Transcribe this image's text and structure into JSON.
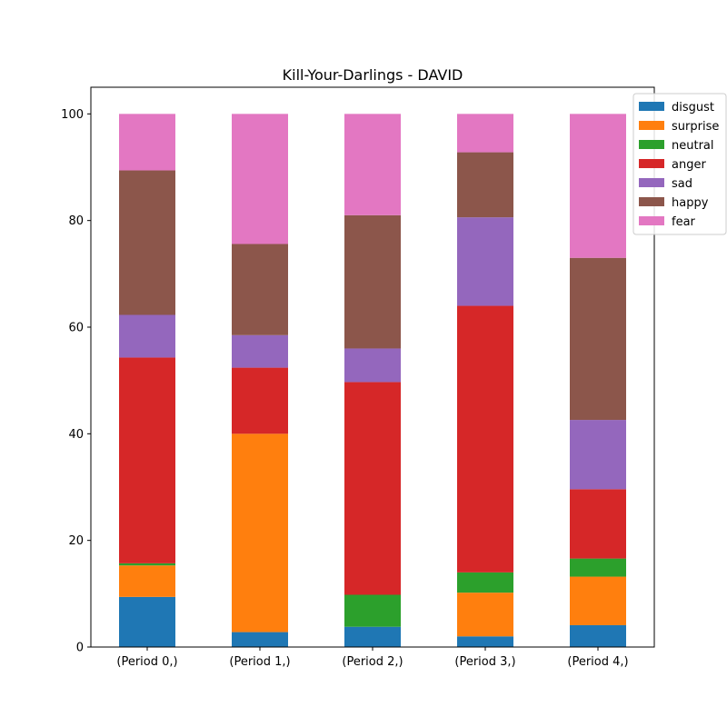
{
  "chart_data": {
    "type": "bar",
    "stacked": true,
    "title": "Kill-Your-Darlings - DAVID",
    "xlabel": "",
    "ylabel": "",
    "categories": [
      "(Period 0,)",
      "(Period 1,)",
      "(Period 2,)",
      "(Period 3,)",
      "(Period 4,)"
    ],
    "ylim": [
      0,
      105
    ],
    "yticks": [
      0,
      20,
      40,
      60,
      80,
      100
    ],
    "grid": false,
    "legend_position": "top-right",
    "series": [
      {
        "name": "disgust",
        "color": "#1f77b4",
        "values": [
          9.4,
          2.8,
          3.8,
          2.0,
          4.1
        ]
      },
      {
        "name": "surprise",
        "color": "#ff7f0e",
        "values": [
          5.9,
          37.2,
          0.0,
          8.2,
          9.1
        ]
      },
      {
        "name": "neutral",
        "color": "#2ca02c",
        "values": [
          0.4,
          0.0,
          6.0,
          3.8,
          3.4
        ]
      },
      {
        "name": "anger",
        "color": "#d62728",
        "values": [
          38.6,
          12.4,
          39.9,
          50.0,
          13.0
        ]
      },
      {
        "name": "sad",
        "color": "#9467bd",
        "values": [
          8.0,
          6.1,
          6.3,
          16.6,
          13.0
        ]
      },
      {
        "name": "happy",
        "color": "#8c564b",
        "values": [
          27.1,
          17.1,
          25.0,
          12.2,
          30.4
        ]
      },
      {
        "name": "fear",
        "color": "#e377c2",
        "values": [
          10.6,
          24.4,
          19.0,
          7.2,
          27.0
        ]
      }
    ]
  }
}
